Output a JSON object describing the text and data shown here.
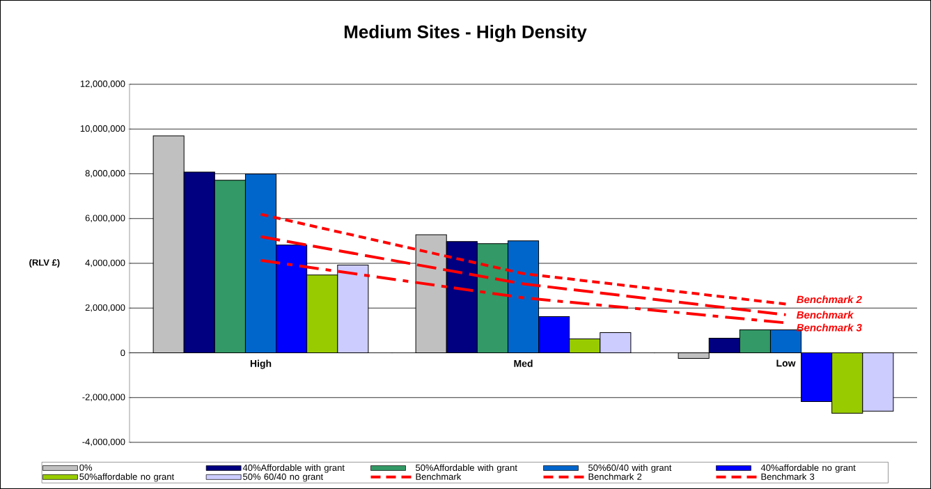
{
  "chart_data": {
    "type": "bar",
    "title": "Medium Sites - High Density",
    "ylabel": "(RLV £)",
    "categories": [
      "High",
      "Med",
      "Low"
    ],
    "ylim": [
      -4000000,
      12000000
    ],
    "yticks": [
      {
        "value": -4000000,
        "label": "-4,000,000"
      },
      {
        "value": -2000000,
        "label": "-2,000,000"
      },
      0,
      {
        "value": 2000000,
        "label": "2,000,000"
      },
      {
        "value": 4000000,
        "label": "4,000,000"
      },
      {
        "value": 6000000,
        "label": "6,000,000"
      },
      {
        "value": 8000000,
        "label": "8,000,000"
      },
      {
        "value": 10000000,
        "label": "10,000,000"
      },
      {
        "value": 12000000,
        "label": "12,000,000"
      }
    ],
    "grid": "y",
    "legend": "bottom",
    "series": [
      {
        "name": "0%",
        "color": "#c0c0c0",
        "values": [
          9700000,
          5280000,
          -250000
        ]
      },
      {
        "name": "40%Affordable with grant",
        "color": "#000080",
        "values": [
          8080000,
          4970000,
          650000
        ]
      },
      {
        "name": "50%Affordable with grant",
        "color": "#339966",
        "values": [
          7710000,
          4880000,
          1030000
        ]
      },
      {
        "name": "50%60/40 with grant",
        "color": "#0066cc",
        "values": [
          7990000,
          5000000,
          1030000
        ]
      },
      {
        "name": "40%affordable no grant",
        "color": "#0000ff",
        "values": [
          4820000,
          1620000,
          -2180000
        ]
      },
      {
        "name": "50%affordable no grant",
        "color": "#99cc00",
        "values": [
          3480000,
          620000,
          -2700000
        ]
      },
      {
        "name": "50% 60/40 no grant",
        "color": "#ccccff",
        "values": [
          3920000,
          900000,
          -2610000
        ]
      },
      {
        "name": "Benchmark",
        "color": "#ff0000",
        "type": "line",
        "line_style": "dashed",
        "values": [
          5190000,
          3080000,
          1700000
        ]
      },
      {
        "name": "Benchmark 2",
        "color": "#ff0000",
        "type": "line",
        "line_style": "dotted",
        "values": [
          6190000,
          3540000,
          2180000
        ]
      },
      {
        "name": "Benchmark 3",
        "color": "#ff0000",
        "type": "line",
        "line_style": "dashdot",
        "values": [
          4130000,
          2460000,
          1340000
        ]
      }
    ]
  }
}
